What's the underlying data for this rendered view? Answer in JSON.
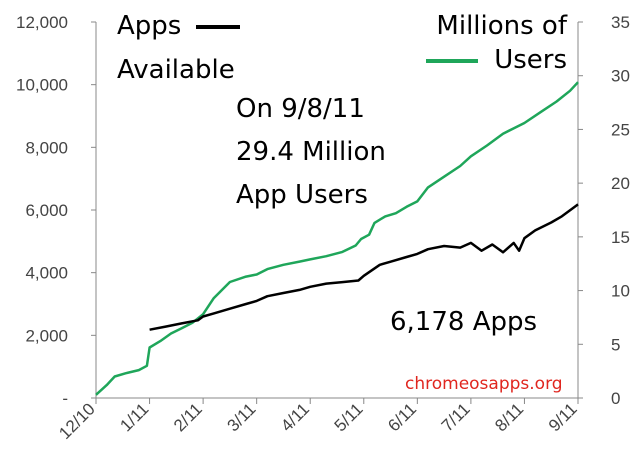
{
  "chart_data": {
    "type": "line",
    "x_categories": [
      "12/10",
      "1/11",
      "2/11",
      "3/11",
      "4/11",
      "5/11",
      "6/11",
      "7/11",
      "8/11",
      "9/11"
    ],
    "left_axis": {
      "label_lines": [
        "Apps",
        "Available"
      ],
      "ylim": [
        0,
        12000
      ],
      "ticks": [
        0,
        2000,
        4000,
        6000,
        8000,
        10000,
        12000
      ],
      "tick_labels": [
        "-",
        "2,000",
        "4,000",
        "6,000",
        "8,000",
        "10,000",
        "12,000"
      ]
    },
    "right_axis": {
      "label_lines": [
        "Millions of",
        "Users"
      ],
      "ylim": [
        0,
        35
      ],
      "ticks": [
        0,
        5,
        10,
        15,
        20,
        25,
        30,
        35
      ],
      "tick_labels": [
        "0",
        "5",
        "10",
        "15",
        "20",
        "25",
        "30",
        "35"
      ]
    },
    "series": [
      {
        "name": "Apps Available",
        "axis": "left",
        "color": "#000000",
        "points": [
          [
            1.0,
            2180
          ],
          [
            1.3,
            2280
          ],
          [
            1.6,
            2380
          ],
          [
            1.9,
            2480
          ],
          [
            2.0,
            2600
          ],
          [
            2.2,
            2700
          ],
          [
            2.5,
            2850
          ],
          [
            2.8,
            3000
          ],
          [
            3.0,
            3100
          ],
          [
            3.2,
            3250
          ],
          [
            3.5,
            3350
          ],
          [
            3.8,
            3450
          ],
          [
            4.0,
            3550
          ],
          [
            4.3,
            3650
          ],
          [
            4.6,
            3700
          ],
          [
            4.9,
            3750
          ],
          [
            5.0,
            3900
          ],
          [
            5.3,
            4250
          ],
          [
            5.5,
            4350
          ],
          [
            5.8,
            4500
          ],
          [
            6.0,
            4600
          ],
          [
            6.2,
            4750
          ],
          [
            6.5,
            4850
          ],
          [
            6.8,
            4800
          ],
          [
            7.0,
            4950
          ],
          [
            7.2,
            4700
          ],
          [
            7.4,
            4900
          ],
          [
            7.6,
            4650
          ],
          [
            7.8,
            4950
          ],
          [
            7.9,
            4700
          ],
          [
            8.0,
            5100
          ],
          [
            8.2,
            5350
          ],
          [
            8.5,
            5600
          ],
          [
            8.7,
            5800
          ],
          [
            8.9,
            6050
          ],
          [
            9.0,
            6178
          ]
        ]
      },
      {
        "name": "Millions of Users",
        "axis": "right",
        "color": "#1fa65a",
        "points": [
          [
            0.0,
            0.3
          ],
          [
            0.2,
            1.2
          ],
          [
            0.35,
            2.0
          ],
          [
            0.55,
            2.3
          ],
          [
            0.8,
            2.6
          ],
          [
            0.95,
            3.0
          ],
          [
            1.0,
            4.7
          ],
          [
            1.2,
            5.3
          ],
          [
            1.4,
            6.0
          ],
          [
            1.6,
            6.5
          ],
          [
            1.8,
            7.0
          ],
          [
            2.0,
            7.8
          ],
          [
            2.2,
            9.3
          ],
          [
            2.5,
            10.8
          ],
          [
            2.8,
            11.3
          ],
          [
            3.0,
            11.5
          ],
          [
            3.2,
            12.0
          ],
          [
            3.5,
            12.4
          ],
          [
            3.8,
            12.7
          ],
          [
            4.0,
            12.9
          ],
          [
            4.3,
            13.2
          ],
          [
            4.6,
            13.6
          ],
          [
            4.85,
            14.2
          ],
          [
            4.95,
            14.8
          ],
          [
            5.1,
            15.2
          ],
          [
            5.2,
            16.3
          ],
          [
            5.4,
            16.9
          ],
          [
            5.6,
            17.2
          ],
          [
            5.8,
            17.8
          ],
          [
            6.0,
            18.3
          ],
          [
            6.2,
            19.6
          ],
          [
            6.5,
            20.6
          ],
          [
            6.8,
            21.6
          ],
          [
            7.0,
            22.5
          ],
          [
            7.3,
            23.5
          ],
          [
            7.6,
            24.6
          ],
          [
            8.0,
            25.6
          ],
          [
            8.3,
            26.6
          ],
          [
            8.6,
            27.6
          ],
          [
            8.85,
            28.6
          ],
          [
            9.0,
            29.4
          ]
        ]
      }
    ],
    "annotations": {
      "apps_label": "Apps",
      "apps_label_2": "Available",
      "users_label": "Millions of",
      "users_label_2": "Users",
      "note_1": "On 9/8/11",
      "note_2": "29.4 Million",
      "note_3": "App Users",
      "apps_total": "6,178 Apps",
      "credit": "chromeosapps.org"
    }
  }
}
